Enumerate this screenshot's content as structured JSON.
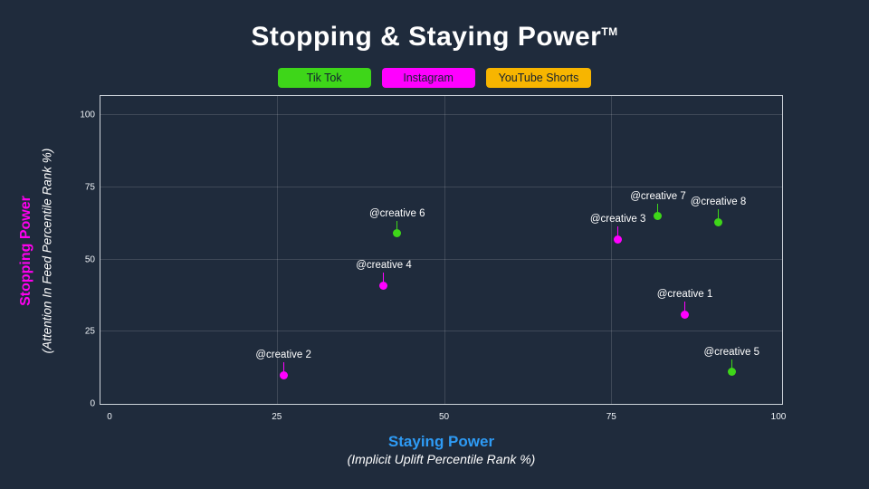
{
  "title": {
    "text": "Stopping & Staying Power",
    "trademark": "TM"
  },
  "legend": {
    "items": [
      {
        "label": "Tik Tok",
        "color": "#3ed619"
      },
      {
        "label": "Instagram",
        "color": "#ff00ff"
      },
      {
        "label": "YouTube Shorts",
        "color": "#f7b500"
      }
    ]
  },
  "chart_data": {
    "type": "scatter",
    "title": "Stopping & Staying Power (TM)",
    "xlabel": "Staying Power",
    "xlabel_sub": "(Implicit Uplift Percentile Rank %)",
    "ylabel": "Stopping Power",
    "ylabel_sub": "(Attention In Feed Percentile Rank %)",
    "xlim": [
      0,
      100
    ],
    "ylim": [
      0,
      100
    ],
    "xticks": [
      0,
      25,
      50,
      75,
      100
    ],
    "yticks": [
      0,
      25,
      50,
      75,
      100
    ],
    "grid": true,
    "legend_position": "top",
    "series": [
      {
        "name": "Tik Tok",
        "color": "#3ed619",
        "points": [
          {
            "label": "@creative 5",
            "x": 93,
            "y": 11
          },
          {
            "label": "@creative 6",
            "x": 43,
            "y": 59
          },
          {
            "label": "@creative 7",
            "x": 82,
            "y": 65
          },
          {
            "label": "@creative 8",
            "x": 91,
            "y": 63
          }
        ]
      },
      {
        "name": "Instagram",
        "color": "#ff00ff",
        "points": [
          {
            "label": "@creative 1",
            "x": 86,
            "y": 31
          },
          {
            "label": "@creative 2",
            "x": 26,
            "y": 10
          },
          {
            "label": "@creative 3",
            "x": 76,
            "y": 57
          },
          {
            "label": "@creative 4",
            "x": 41,
            "y": 41
          }
        ]
      },
      {
        "name": "YouTube Shorts",
        "color": "#f7b500",
        "points": []
      }
    ]
  },
  "colors": {
    "background": "#1f2b3c",
    "xlabel_blue": "#2e9bf5",
    "ylabel_magenta": "#ff00f0",
    "grid": "rgba(255,255,255,0.14)",
    "plot_border": "#cdd3da",
    "legend_text": "#132030"
  }
}
